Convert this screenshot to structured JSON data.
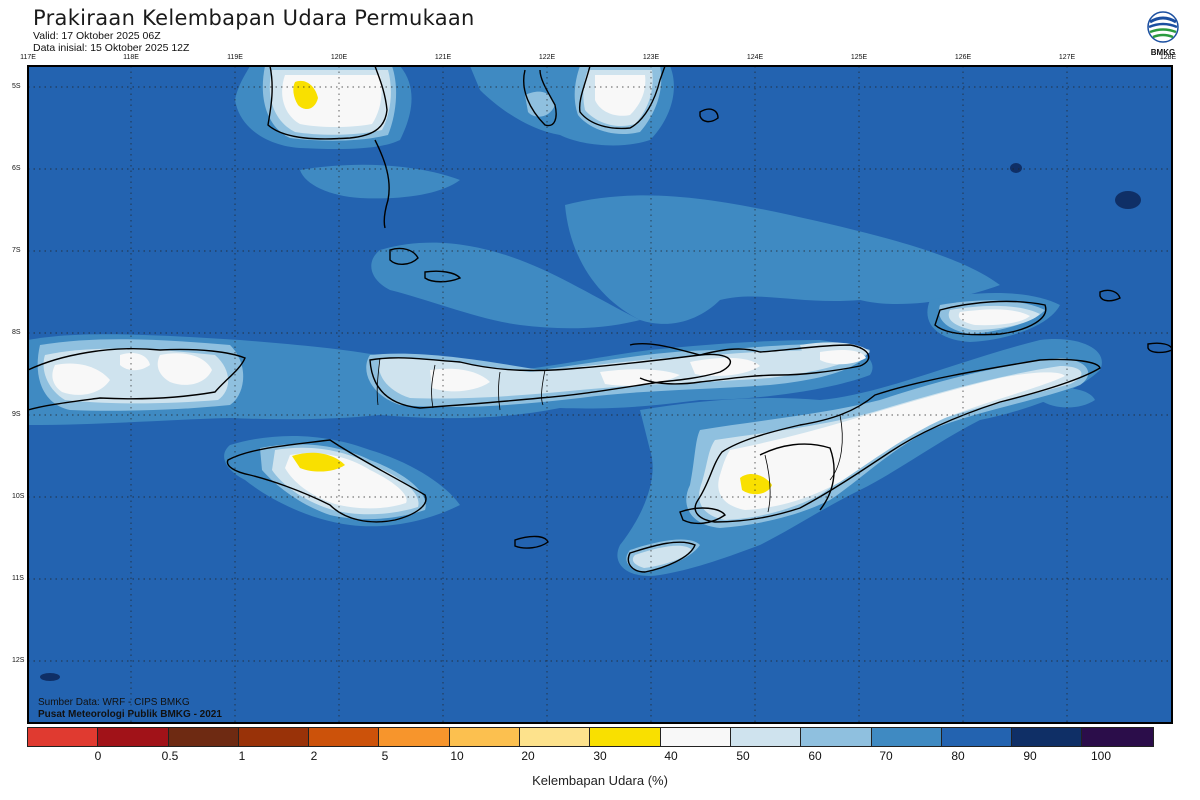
{
  "header": {
    "title": "Prakiraan Kelembapan Udara Permukaan",
    "valid": "Valid: 17 Oktober 2025 06Z",
    "initial": "Data inisial: 15 Oktober 2025 12Z",
    "logo_text": "BMKG"
  },
  "map": {
    "lon_labels": [
      "117E",
      "118E",
      "119E",
      "120E",
      "121E",
      "122E",
      "123E",
      "124E",
      "125E",
      "126E",
      "127E",
      "128E"
    ],
    "lat_labels": [
      "5S",
      "6S",
      "7S",
      "8S",
      "9S",
      "10S",
      "11S",
      "12S"
    ],
    "source_line_1": "Sumber Data: WRF - CIPS BMKG",
    "source_line_2": "Pusat Meteorologi Publik BMKG - 2021"
  },
  "colorbar": {
    "title": "Kelembapan Udara (%)",
    "ticks": [
      "0",
      "0.5",
      "1",
      "2",
      "5",
      "10",
      "20",
      "30",
      "40",
      "50",
      "60",
      "70",
      "80",
      "90",
      "100"
    ],
    "colors": [
      "#e03a30",
      "#a11218",
      "#6e2a12",
      "#993208",
      "#cc520a",
      "#f7952c",
      "#fcc04f",
      "#fde28c",
      "#f9e000",
      "#f8f8f8",
      "#cfe3ee",
      "#8fc0df",
      "#3f8ac2",
      "#2363b0",
      "#0f2f66",
      "#2b0d4a"
    ]
  },
  "style": {
    "ocean": "#2363b0",
    "band70": "#3f8ac2",
    "band60": "#8fc0df",
    "band50": "#cfe3ee",
    "band40": "#f8f8f8",
    "band30": "#f9e000",
    "band90": "#0f2f66"
  }
}
